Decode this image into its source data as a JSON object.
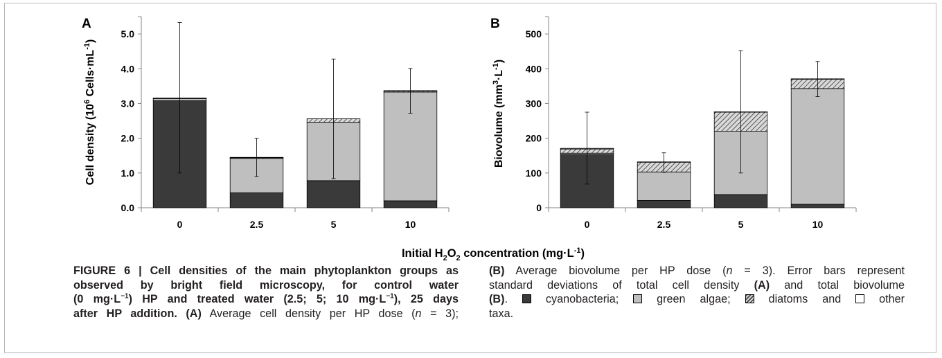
{
  "chart_data": [
    {
      "panel": "A",
      "type": "bar",
      "stacked": true,
      "ylabel": "Cell density (10⁶ Cells·mL⁻¹)",
      "ylim": [
        0,
        5.5
      ],
      "yticks": [
        "0.0",
        "1.0",
        "2.0",
        "3.0",
        "4.0",
        "5.0"
      ],
      "categories": [
        "0",
        "2.5",
        "5",
        "10"
      ],
      "series": [
        {
          "name": "cyanobacteria",
          "values": [
            3.08,
            0.43,
            0.78,
            0.2
          ],
          "color": "#3a3a3a"
        },
        {
          "name": "green algae",
          "values": [
            0.06,
            0.99,
            1.68,
            3.13
          ],
          "color": "#bfbfbf"
        },
        {
          "name": "diatoms",
          "values": [
            0.0,
            0.02,
            0.1,
            0.03
          ],
          "color": "hatched"
        },
        {
          "name": "other taxa",
          "values": [
            0.02,
            0.01,
            0.0,
            0.01
          ],
          "color": "#ffffff"
        }
      ],
      "error_bars": [
        [
          1.0,
          5.33
        ],
        [
          0.9,
          2.0
        ],
        [
          0.84,
          4.28
        ],
        [
          2.72,
          4.01
        ]
      ],
      "grid": false
    },
    {
      "panel": "B",
      "type": "bar",
      "stacked": true,
      "ylabel": "Biovolume (mm³·L⁻¹)",
      "ylim": [
        0,
        550
      ],
      "yticks": [
        "0",
        "100",
        "200",
        "300",
        "400",
        "500"
      ],
      "categories": [
        "0",
        "2.5",
        "5",
        "10"
      ],
      "series": [
        {
          "name": "cyanobacteria",
          "values": [
            153,
            21,
            38,
            10
          ],
          "color": "#3a3a3a"
        },
        {
          "name": "green algae",
          "values": [
            4,
            82,
            182,
            333
          ],
          "color": "#bfbfbf"
        },
        {
          "name": "diatoms",
          "values": [
            12,
            28,
            55,
            27
          ],
          "color": "hatched"
        },
        {
          "name": "other taxa",
          "values": [
            2,
            1,
            1,
            1
          ],
          "color": "#ffffff"
        }
      ],
      "error_bars": [
        [
          68,
          275
        ],
        [
          102,
          158
        ],
        [
          100,
          452
        ],
        [
          320,
          421
        ]
      ],
      "grid": false
    }
  ],
  "panels": {
    "a_label": "A",
    "b_label": "B"
  },
  "axes": {
    "a_ylabel_main": "Cell density (10",
    "a_ylabel_exp": "6",
    "a_ylabel_rest": " Cells·mL",
    "a_ylabel_exp2": "-1",
    "a_ylabel_close": ")",
    "b_ylabel_main": "Biovolume (mm",
    "b_ylabel_exp": "3",
    "b_ylabel_mid": "·L",
    "b_ylabel_exp2": "-1",
    "b_ylabel_close": ")",
    "xlabel_main": "Initial H",
    "xlabel_sub1": "2",
    "xlabel_mid": "O",
    "xlabel_sub2": "2",
    "xlabel_rest": " concentration (mg·L",
    "xlabel_exp": "-1",
    "xlabel_close": ")"
  },
  "caption": {
    "l1": "FIGURE 6 | Cell densities of the main phytoplankton groups as",
    "l2": "observed by bright field microscopy, for control water",
    "l3_a": "(0 mg·L",
    "l3_sup": "−1",
    "l3_b": ") HP and treated water (2.5; 5; 10 mg·L",
    "l3_sup2": "−1",
    "l3_c": "), 25 days",
    "l4_bold": "after HP addition.",
    "l4_a": " (A)",
    "l4_b": " Average cell density per HP dose (",
    "l4_n": "n",
    "l4_c": " = 3);",
    "r1_a": "(B)",
    "r1_b": " Average biovolume per HP dose (",
    "r1_n": "n",
    "r1_c": " = 3). Error bars represent",
    "r2_a": "standard deviations of total cell density ",
    "r2_b": "(A)",
    "r2_c": " and total biovolume",
    "r3_a": "(B)",
    "r3_b": ".",
    "legend_cyano": "cyanobacteria;",
    "legend_green": "green algae;",
    "legend_diatom": "diatoms and",
    "legend_other": "other",
    "r4": "taxa."
  }
}
